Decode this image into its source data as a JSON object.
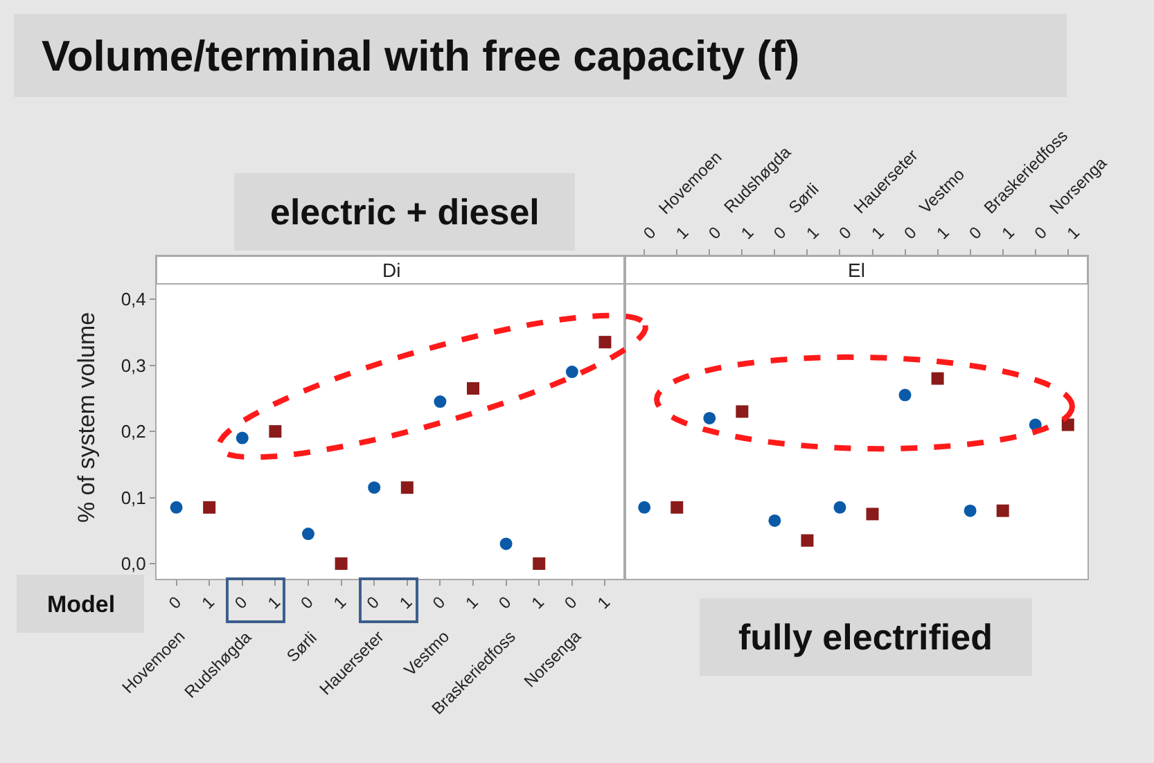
{
  "chart_data": [
    {
      "type": "scatter",
      "title": "Volume/terminal with free capacity (f)",
      "subtitle": "Di",
      "ylabel": "% of system volume",
      "categories": [
        "0",
        "1",
        "0",
        "1",
        "0",
        "1",
        "0",
        "1",
        "0",
        "1",
        "0",
        "1",
        "0",
        "1"
      ],
      "series": [
        {
          "color": "#0a5aa8",
          "marker": "circle",
          "values": [
            0.085,
            null,
            0.19,
            null,
            0.045,
            null,
            0.115,
            null,
            0.245,
            null,
            0.03,
            null,
            0.29,
            null
          ]
        },
        {
          "color": "#8b1a1a",
          "marker": "square",
          "values": [
            null,
            0.085,
            null,
            0.2,
            null,
            0.0,
            null,
            0.115,
            null,
            0.265,
            null,
            0.0,
            null,
            0.335
          ]
        }
      ],
      "ylim": [
        -0.023,
        0.465
      ],
      "yticks": [
        {
          "value": 0,
          "label": "0,0"
        },
        {
          "value": 0.1,
          "label": "0,1"
        },
        {
          "value": 0.2,
          "label": "0,2"
        },
        {
          "value": 0.3,
          "label": "0,3"
        },
        {
          "value": 0.4,
          "label": "0,4"
        }
      ],
      "grid": false,
      "annotations": [
        "Hovemoen",
        "Rudshøgda",
        "Sørli",
        "Hauerseter",
        "Vestmo",
        "Braskeriedfoss",
        "Norsenga",
        "electric + diesel",
        "Model"
      ]
    },
    {
      "type": "scatter",
      "subtitle": "El",
      "categories": [
        "0",
        "1",
        "0",
        "1",
        "0",
        "1",
        "0",
        "1",
        "0",
        "1",
        "0",
        "1",
        "0",
        "1"
      ],
      "series": [
        {
          "color": "#0a5aa8",
          "marker": "circle",
          "values": [
            0.085,
            null,
            0.22,
            null,
            0.065,
            null,
            0.085,
            null,
            0.255,
            null,
            0.08,
            null,
            0.21,
            null
          ]
        },
        {
          "color": "#8b1a1a",
          "marker": "square",
          "values": [
            null,
            0.085,
            null,
            0.23,
            null,
            0.035,
            null,
            0.075,
            null,
            0.28,
            null,
            0.08,
            null,
            0.21
          ]
        }
      ],
      "ylim": [
        -0.023,
        0.465
      ],
      "tick_labels": "x",
      "grid": false,
      "annotations": [
        "Hovemoen",
        "Rudshøgda",
        "Sørli",
        "Hauerseter",
        "Vestmo",
        "Braskeriedfoss",
        "Norsenga",
        "fully electrified"
      ]
    }
  ]
}
